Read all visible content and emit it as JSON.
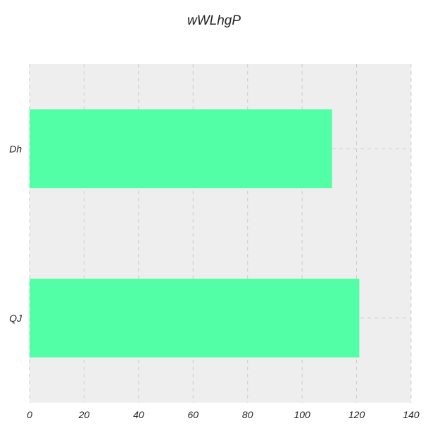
{
  "chart_data": {
    "type": "bar",
    "orientation": "horizontal",
    "title": "wWLhgP",
    "xlabel": "",
    "ylabel": "",
    "categories": [
      "Dh",
      "QJ"
    ],
    "values": [
      111,
      121
    ],
    "xlim": [
      0,
      140
    ],
    "xticks": [
      0,
      20,
      40,
      60,
      80,
      100,
      120,
      140
    ],
    "grid": true,
    "colors": {
      "bar": "#52ffa6",
      "plot_background": "#eeeeee",
      "grid": "#cccccc",
      "text": "#222222"
    }
  }
}
